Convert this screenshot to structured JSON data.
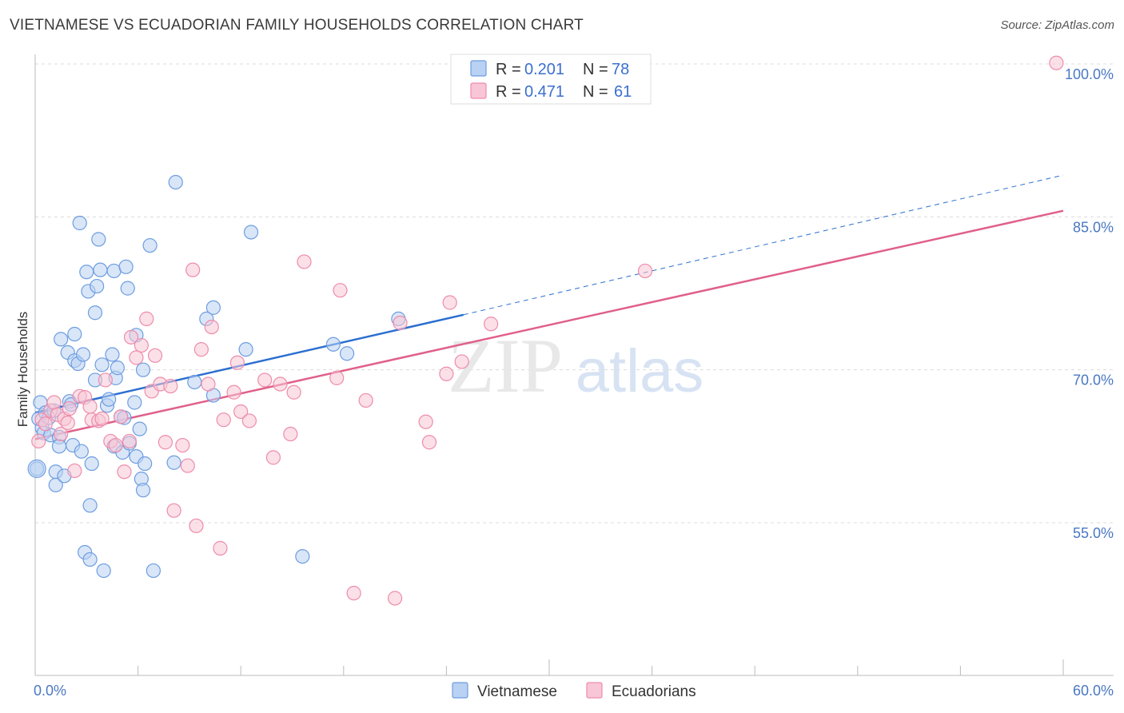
{
  "title": "VIETNAMESE VS ECUADORIAN FAMILY HOUSEHOLDS CORRELATION CHART",
  "source": "Source: ZipAtlas.com",
  "watermark": {
    "zip": "ZIP",
    "atlas": "atlas"
  },
  "chart_data": {
    "type": "scatter",
    "title": "VIETNAMESE VS ECUADORIAN FAMILY HOUSEHOLDS CORRELATION CHART",
    "xlabel": "",
    "ylabel": "Family Households",
    "xlim": [
      0,
      60
    ],
    "ylim": [
      40,
      101
    ],
    "x_tick_labels": {
      "min": "0.0%",
      "max": "60.0%"
    },
    "y_ticks": [
      {
        "value": 55,
        "label": "55.0%"
      },
      {
        "value": 70,
        "label": "70.0%"
      },
      {
        "value": 85,
        "label": "85.0%"
      },
      {
        "value": 100,
        "label": "100.0%"
      }
    ],
    "grid": true,
    "legend_position": "top-center",
    "series": [
      {
        "name": "Vietnamese",
        "color": "#6d9de0",
        "fill": "#b9d1f3",
        "line_color": "#2b6fd0",
        "R": "0.201",
        "N": "78",
        "trend": {
          "x0": 0,
          "y0": 65.8,
          "x1": 25,
          "y1": 75.4,
          "dash_to_x": 60,
          "dash_to_y": 89.1
        },
        "points": [
          [
            0.1,
            60.3
          ],
          [
            0.2,
            65.2
          ],
          [
            0.3,
            66.8
          ],
          [
            0.4,
            64.3
          ],
          [
            0.5,
            63.8
          ],
          [
            0.6,
            65.8
          ],
          [
            0.8,
            65.3
          ],
          [
            0.9,
            63.6
          ],
          [
            1.1,
            66.0
          ],
          [
            1.2,
            60.0
          ],
          [
            1.2,
            58.7
          ],
          [
            1.4,
            63.4
          ],
          [
            1.4,
            62.5
          ],
          [
            1.5,
            73.0
          ],
          [
            1.7,
            59.6
          ],
          [
            1.9,
            71.7
          ],
          [
            2.0,
            66.9
          ],
          [
            2.1,
            66.6
          ],
          [
            2.2,
            62.6
          ],
          [
            2.3,
            73.5
          ],
          [
            2.3,
            70.9
          ],
          [
            2.5,
            70.6
          ],
          [
            2.6,
            84.4
          ],
          [
            2.7,
            62.0
          ],
          [
            2.8,
            71.5
          ],
          [
            2.9,
            52.1
          ],
          [
            3.0,
            79.6
          ],
          [
            3.1,
            77.7
          ],
          [
            3.2,
            51.4
          ],
          [
            3.2,
            56.7
          ],
          [
            3.3,
            60.8
          ],
          [
            3.5,
            75.6
          ],
          [
            3.5,
            69.0
          ],
          [
            3.6,
            78.2
          ],
          [
            3.7,
            82.8
          ],
          [
            3.8,
            79.8
          ],
          [
            3.9,
            70.5
          ],
          [
            4.0,
            50.3
          ],
          [
            4.2,
            66.5
          ],
          [
            4.3,
            67.1
          ],
          [
            4.5,
            71.5
          ],
          [
            4.6,
            62.5
          ],
          [
            4.6,
            79.7
          ],
          [
            4.7,
            69.2
          ],
          [
            4.8,
            70.2
          ],
          [
            5.0,
            65.4
          ],
          [
            5.1,
            61.9
          ],
          [
            5.2,
            65.3
          ],
          [
            5.3,
            80.1
          ],
          [
            5.4,
            78.0
          ],
          [
            5.5,
            62.8
          ],
          [
            5.8,
            66.8
          ],
          [
            5.9,
            61.5
          ],
          [
            5.9,
            73.4
          ],
          [
            6.1,
            64.2
          ],
          [
            6.2,
            59.3
          ],
          [
            6.3,
            58.2
          ],
          [
            6.4,
            60.8
          ],
          [
            6.3,
            70.0
          ],
          [
            6.7,
            82.2
          ],
          [
            6.9,
            50.3
          ],
          [
            8.2,
            88.4
          ],
          [
            8.1,
            60.9
          ],
          [
            9.3,
            68.8
          ],
          [
            10.0,
            75.0
          ],
          [
            10.4,
            76.1
          ],
          [
            10.4,
            67.5
          ],
          [
            12.3,
            72.0
          ],
          [
            12.6,
            83.5
          ],
          [
            15.6,
            51.7
          ],
          [
            17.4,
            72.5
          ],
          [
            18.2,
            71.6
          ],
          [
            21.2,
            75.0
          ]
        ]
      },
      {
        "name": "Ecuadorians",
        "color": "#ee8cab",
        "fill": "#f8c6d6",
        "line_color": "#e0608a",
        "R": "0.471",
        "N": "61",
        "trend": {
          "x0": 0,
          "y0": 63.2,
          "x1": 60,
          "y1": 85.6
        },
        "points": [
          [
            0.2,
            63.0
          ],
          [
            0.4,
            65.1
          ],
          [
            0.6,
            64.7
          ],
          [
            0.9,
            66.0
          ],
          [
            1.1,
            66.8
          ],
          [
            1.3,
            65.6
          ],
          [
            1.5,
            63.7
          ],
          [
            1.7,
            65.2
          ],
          [
            1.9,
            64.8
          ],
          [
            2.0,
            66.2
          ],
          [
            2.3,
            60.1
          ],
          [
            2.6,
            67.4
          ],
          [
            2.9,
            67.3
          ],
          [
            3.2,
            66.4
          ],
          [
            3.3,
            65.1
          ],
          [
            3.7,
            65.0
          ],
          [
            3.9,
            65.2
          ],
          [
            4.1,
            69.0
          ],
          [
            4.4,
            63.0
          ],
          [
            4.7,
            62.6
          ],
          [
            5.0,
            65.4
          ],
          [
            5.2,
            60.0
          ],
          [
            5.5,
            63.0
          ],
          [
            5.6,
            73.2
          ],
          [
            5.9,
            71.2
          ],
          [
            6.2,
            72.4
          ],
          [
            6.5,
            75.0
          ],
          [
            6.8,
            67.9
          ],
          [
            7.0,
            71.4
          ],
          [
            7.3,
            68.6
          ],
          [
            7.6,
            62.9
          ],
          [
            7.9,
            68.4
          ],
          [
            8.1,
            56.2
          ],
          [
            8.6,
            62.6
          ],
          [
            8.9,
            60.6
          ],
          [
            9.2,
            79.8
          ],
          [
            9.4,
            54.7
          ],
          [
            9.7,
            72.0
          ],
          [
            10.1,
            68.6
          ],
          [
            10.3,
            74.2
          ],
          [
            10.8,
            52.5
          ],
          [
            11.0,
            65.1
          ],
          [
            11.6,
            67.8
          ],
          [
            11.8,
            70.7
          ],
          [
            12.0,
            65.9
          ],
          [
            12.5,
            65.0
          ],
          [
            13.4,
            69.0
          ],
          [
            13.9,
            61.4
          ],
          [
            14.3,
            68.6
          ],
          [
            14.9,
            63.7
          ],
          [
            15.1,
            67.8
          ],
          [
            15.7,
            80.6
          ],
          [
            17.6,
            69.2
          ],
          [
            17.8,
            77.8
          ],
          [
            18.6,
            48.1
          ],
          [
            19.3,
            67.0
          ],
          [
            21.0,
            47.6
          ],
          [
            21.3,
            74.6
          ],
          [
            22.8,
            64.9
          ],
          [
            23.0,
            62.9
          ],
          [
            24.2,
            76.6
          ],
          [
            24.0,
            69.6
          ],
          [
            24.9,
            70.8
          ],
          [
            26.6,
            74.5
          ],
          [
            35.6,
            79.7
          ],
          [
            59.6,
            100.1
          ]
        ]
      }
    ]
  }
}
